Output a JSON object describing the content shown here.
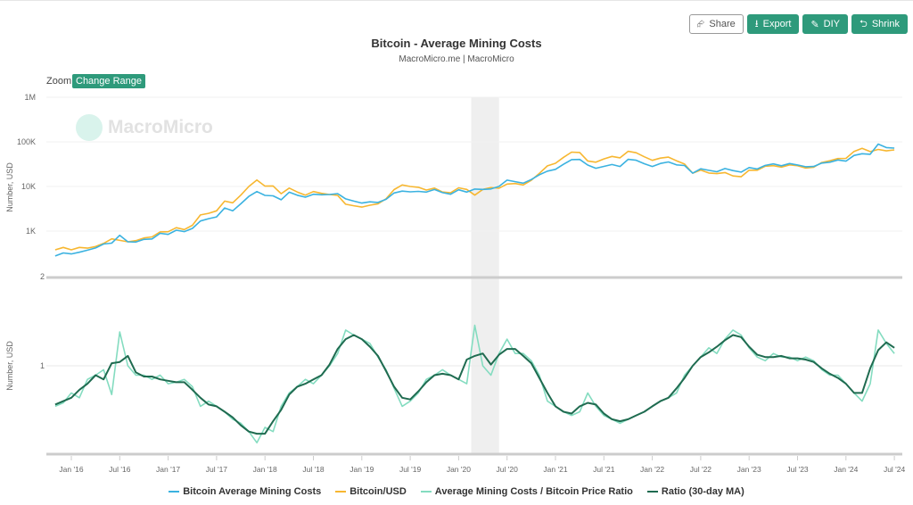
{
  "toolbar": {
    "share": "Share",
    "export": "Export",
    "diy": "DIY",
    "shrink": "Shrink"
  },
  "zoom": {
    "label": "Zoom",
    "change_range": "Change Range"
  },
  "watermark": "MacroMicro",
  "colors": {
    "cost": "#3bb2e0",
    "price": "#f7b731",
    "ratio": "#84dcc0",
    "ratio_ma": "#1f6b50",
    "accent": "#2e9a7b"
  },
  "chart_data": {
    "type": "line",
    "title": "Bitcoin - Average Mining Costs",
    "subtitle": "MacroMicro.me | MacroMicro",
    "grid": true,
    "legend_position": "bottom",
    "shaded_period": [
      "2020-03",
      "2020-06"
    ],
    "x_tick_labels": [
      "Jan '16",
      "Jul '16",
      "Jan '17",
      "Jul '17",
      "Jan '18",
      "Jul '18",
      "Jan '19",
      "Jul '19",
      "Jan '20",
      "Jul '20",
      "Jan '21",
      "Jul '21",
      "Jan '22",
      "Jul '22",
      "Jan '23",
      "Jul '23",
      "Jan '24",
      "Jul '24"
    ],
    "panes": [
      {
        "ylabel": "Number, USD",
        "scale": "log",
        "ylim": [
          100,
          1000000
        ],
        "y_tick_labels": [
          "1K",
          "10K",
          "100K",
          "1M"
        ],
        "y_tick_values": [
          1000,
          10000,
          100000,
          1000000
        ]
      },
      {
        "ylabel": "Number, USD",
        "scale": "log",
        "ylim": [
          0.5,
          2
        ],
        "y_tick_labels": [
          "1",
          "2"
        ],
        "y_tick_values": [
          1,
          2
        ]
      }
    ],
    "x": [
      "2015-11",
      "2015-12",
      "2016-01",
      "2016-02",
      "2016-03",
      "2016-04",
      "2016-05",
      "2016-06",
      "2016-07",
      "2016-08",
      "2016-09",
      "2016-10",
      "2016-11",
      "2016-12",
      "2017-01",
      "2017-02",
      "2017-03",
      "2017-04",
      "2017-05",
      "2017-06",
      "2017-07",
      "2017-08",
      "2017-09",
      "2017-10",
      "2017-11",
      "2017-12",
      "2018-01",
      "2018-02",
      "2018-03",
      "2018-04",
      "2018-05",
      "2018-06",
      "2018-07",
      "2018-08",
      "2018-09",
      "2018-10",
      "2018-11",
      "2018-12",
      "2019-01",
      "2019-02",
      "2019-03",
      "2019-04",
      "2019-05",
      "2019-06",
      "2019-07",
      "2019-08",
      "2019-09",
      "2019-10",
      "2019-11",
      "2019-12",
      "2020-01",
      "2020-02",
      "2020-03",
      "2020-04",
      "2020-05",
      "2020-06",
      "2020-07",
      "2020-08",
      "2020-09",
      "2020-10",
      "2020-11",
      "2020-12",
      "2021-01",
      "2021-02",
      "2021-03",
      "2021-04",
      "2021-05",
      "2021-06",
      "2021-07",
      "2021-08",
      "2021-09",
      "2021-10",
      "2021-11",
      "2021-12",
      "2022-01",
      "2022-02",
      "2022-03",
      "2022-04",
      "2022-05",
      "2022-06",
      "2022-07",
      "2022-08",
      "2022-09",
      "2022-10",
      "2022-11",
      "2022-12",
      "2023-01",
      "2023-02",
      "2023-03",
      "2023-04",
      "2023-05",
      "2023-06",
      "2023-07",
      "2023-08",
      "2023-09",
      "2023-10",
      "2023-11",
      "2023-12",
      "2024-01",
      "2024-02",
      "2024-03",
      "2024-04",
      "2024-05",
      "2024-06",
      "2024-07"
    ],
    "series": [
      {
        "name": "Bitcoin Average Mining Costs",
        "pane": 0,
        "values": [
          277,
          323,
          308,
          335,
          374,
          419,
          514,
          536,
          806,
          575,
          567,
          651,
          666,
          893,
          844,
          1047,
          972,
          1148,
          1679,
          1900,
          2081,
          3290,
          2838,
          4096,
          6000,
          7700,
          6324,
          6180,
          5037,
          7452,
          6375,
          5760,
          6699,
          6510,
          6600,
          6930,
          5280,
          4699,
          4244,
          4522,
          4387,
          5141,
          7140,
          7884,
          7600,
          7776,
          7470,
          8556,
          7275,
          6696,
          8415,
          7482,
          8768,
          8600,
          8789,
          10065,
          13899,
          12815,
          11880,
          14352,
          18321,
          22040,
          24163,
          31500,
          39984,
          40390,
          30213,
          25550,
          28220,
          31086,
          28032,
          40458,
          38760,
          32410,
          28105,
          32832,
          35490,
          30537,
          29574,
          19900,
          24931,
          23000,
          21340,
          25215,
          22704,
          20955,
          26565,
          24717,
          29640,
          32120,
          29104,
          32635,
          30368,
          27713,
          28080,
          33465,
          35061,
          39339,
          37062,
          49572,
          54188,
          52722,
          89100,
          74613,
          72600
        ]
      },
      {
        "name": "Bitcoin/USD",
        "pane": 0,
        "values": [
          380,
          430,
          380,
          430,
          415,
          450,
          530,
          670,
          620,
          575,
          610,
          700,
          740,
          960,
          970,
          1190,
          1080,
          1350,
          2300,
          2500,
          2850,
          4700,
          4300,
          6400,
          10000,
          14000,
          10200,
          10300,
          6900,
          9200,
          7500,
          6400,
          7700,
          7000,
          6600,
          6300,
          4000,
          3700,
          3450,
          3800,
          4100,
          5300,
          8500,
          10800,
          10000,
          9600,
          8300,
          9200,
          7500,
          7200,
          9350,
          8600,
          6400,
          8600,
          9450,
          9150,
          11300,
          11650,
          10800,
          13800,
          19700,
          29000,
          33100,
          45000,
          58800,
          57700,
          37300,
          35000,
          41500,
          47100,
          43800,
          61300,
          57000,
          46300,
          38500,
          43200,
          45500,
          37700,
          31800,
          19900,
          23300,
          20000,
          19400,
          20500,
          17200,
          16500,
          23100,
          23100,
          28500,
          29200,
          27200,
          30500,
          29200,
          25900,
          27000,
          34500,
          37700,
          42300,
          42600,
          61200,
          71300,
          60600,
          67500,
          62700,
          66000
        ]
      },
      {
        "name": "Average Mining Costs / Bitcoin Price Ratio",
        "pane": 1,
        "values": [
          0.73,
          0.75,
          0.81,
          0.78,
          0.9,
          0.93,
          0.97,
          0.8,
          1.3,
          1.0,
          0.93,
          0.93,
          0.9,
          0.93,
          0.87,
          0.88,
          0.9,
          0.85,
          0.73,
          0.76,
          0.73,
          0.7,
          0.66,
          0.64,
          0.6,
          0.55,
          0.62,
          0.6,
          0.73,
          0.81,
          0.85,
          0.9,
          0.87,
          0.93,
          1.0,
          1.1,
          1.32,
          1.27,
          1.23,
          1.19,
          1.07,
          0.97,
          0.84,
          0.73,
          0.76,
          0.81,
          0.9,
          0.93,
          0.97,
          0.93,
          0.9,
          0.87,
          1.37,
          1.0,
          0.93,
          1.1,
          1.23,
          1.1,
          1.1,
          1.04,
          0.93,
          0.76,
          0.73,
          0.7,
          0.68,
          0.7,
          0.81,
          0.73,
          0.68,
          0.66,
          0.64,
          0.66,
          0.68,
          0.7,
          0.73,
          0.76,
          0.78,
          0.81,
          0.93,
          1.0,
          1.07,
          1.15,
          1.1,
          1.23,
          1.32,
          1.27,
          1.15,
          1.07,
          1.04,
          1.1,
          1.07,
          1.07,
          1.04,
          1.07,
          1.04,
          0.97,
          0.93,
          0.93,
          0.87,
          0.81,
          0.76,
          0.87,
          1.32,
          1.19,
          1.1
        ]
      },
      {
        "name": "Ratio (30-day MA)",
        "pane": 1,
        "values": [
          0.74,
          0.76,
          0.78,
          0.83,
          0.87,
          0.93,
          0.9,
          1.02,
          1.03,
          1.08,
          0.95,
          0.92,
          0.92,
          0.9,
          0.89,
          0.88,
          0.88,
          0.83,
          0.78,
          0.74,
          0.73,
          0.7,
          0.67,
          0.63,
          0.6,
          0.59,
          0.59,
          0.65,
          0.71,
          0.8,
          0.85,
          0.87,
          0.9,
          0.93,
          1.01,
          1.14,
          1.23,
          1.27,
          1.23,
          1.16,
          1.08,
          0.96,
          0.85,
          0.78,
          0.77,
          0.82,
          0.88,
          0.93,
          0.94,
          0.93,
          0.9,
          1.05,
          1.08,
          1.1,
          1.01,
          1.09,
          1.14,
          1.14,
          1.08,
          1.02,
          0.91,
          0.81,
          0.73,
          0.7,
          0.69,
          0.73,
          0.75,
          0.74,
          0.69,
          0.66,
          0.65,
          0.66,
          0.68,
          0.7,
          0.73,
          0.76,
          0.78,
          0.84,
          0.91,
          1.0,
          1.07,
          1.11,
          1.16,
          1.22,
          1.27,
          1.25,
          1.16,
          1.09,
          1.07,
          1.07,
          1.08,
          1.06,
          1.06,
          1.05,
          1.03,
          0.98,
          0.94,
          0.91,
          0.87,
          0.81,
          0.81,
          0.98,
          1.13,
          1.2,
          1.15
        ]
      }
    ]
  }
}
